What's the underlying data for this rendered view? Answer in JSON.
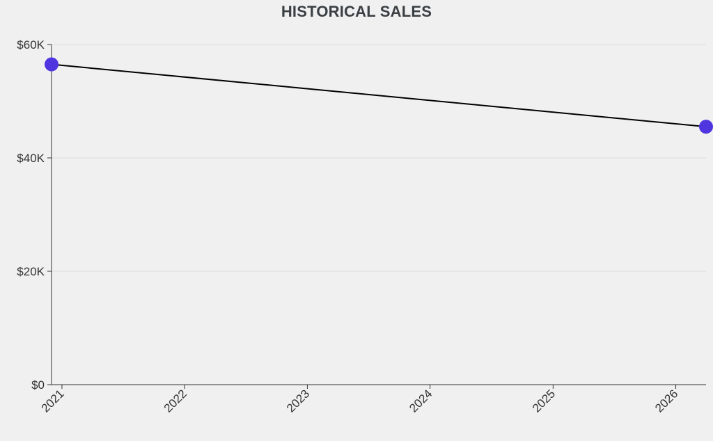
{
  "chart_data": {
    "type": "line",
    "title": "HISTORICAL SALES",
    "xlabel": "",
    "ylabel": "",
    "x_ticks": [
      "2021",
      "2022",
      "2023",
      "2024",
      "2025",
      "2026"
    ],
    "y_ticks": [
      "$0",
      "$20K",
      "$40K",
      "$60K"
    ],
    "ylim": [
      0,
      60000
    ],
    "xlim": [
      "2020-12-01",
      "2026-04-01"
    ],
    "grid": true,
    "series": [
      {
        "color": "#4f35e0",
        "line_color": "#000000",
        "points": [
          {
            "x": "2020-12-01",
            "y": 56500
          },
          {
            "x": "2026-04-01",
            "y": 45500
          }
        ]
      }
    ]
  }
}
